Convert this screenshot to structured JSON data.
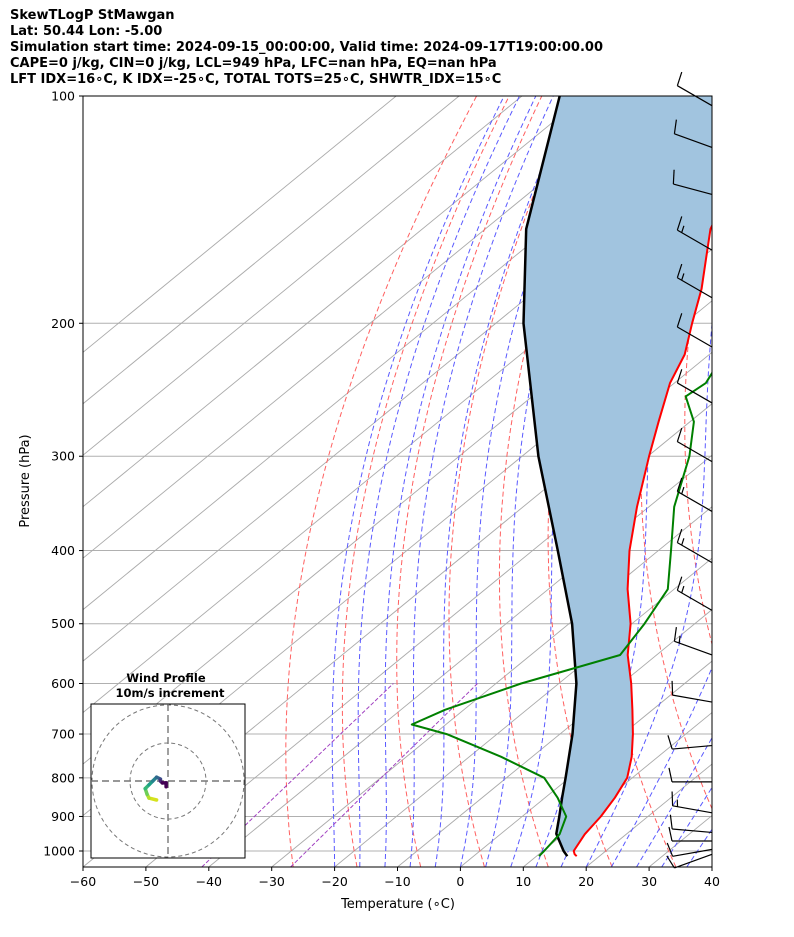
{
  "header": {
    "title_line": "SkewTLogP StMawgan",
    "location_line": "Lat: 50.44   Lon: -5.00",
    "time_line": "Simulation start time: 2024-09-15_00:00:00, Valid time: 2024-09-17T19:00:00.00",
    "params_line": "CAPE=0 j/kg, CIN=0 j/kg, LCL=949 hPa, LFC=nan hPa, EQ=nan hPa",
    "indices_line": "LFT IDX=16∘C, K IDX=-25∘C, TOTAL TOTS=25∘C, SHWTR_IDX=15∘C"
  },
  "chart_data": {
    "type": "skewt",
    "xlabel": "Temperature (∘C)",
    "ylabel": "Pressure (hPa)",
    "xlim": [
      -60,
      40
    ],
    "ylim": [
      1050,
      100
    ],
    "x_ticks": [
      -60,
      -50,
      -40,
      -30,
      -20,
      -10,
      0,
      10,
      20,
      30,
      40
    ],
    "y_ticks": [
      100,
      200,
      300,
      400,
      500,
      600,
      700,
      800,
      900,
      1000
    ],
    "grid": true,
    "colors": {
      "temperature": "#ff0000",
      "dewpoint": "#008000",
      "parcel": "#000000",
      "cape_fill": "#a1c4df",
      "dry_adiabats": "#ff6060",
      "moist_adiabats": "#5a5aff",
      "mixing_ratio": "#a040c0",
      "isotherms": "#aaaaaa"
    },
    "temperature": {
      "p": [
        1016,
        1010,
        1000,
        950,
        900,
        850,
        800,
        750,
        700,
        650,
        600,
        550,
        500,
        450,
        400,
        350,
        300,
        270,
        240,
        220,
        200,
        180,
        160,
        150,
        140,
        130,
        120,
        110,
        100
      ],
      "t": [
        16.4,
        15.7,
        14.9,
        13.4,
        12.5,
        11.1,
        9.2,
        5.8,
        1.6,
        -3.2,
        -8.5,
        -14.6,
        -20.2,
        -27.4,
        -34.6,
        -41.9,
        -49.8,
        -55.0,
        -60.7,
        -63.9,
        -68.8,
        -74.0,
        -80.6,
        -84.2,
        -86.8,
        -84.2,
        -78.2,
        -74.6,
        -73.2
      ]
    },
    "dewpoint": {
      "p": [
        1016,
        1000,
        950,
        900,
        850,
        800,
        750,
        700,
        680,
        650,
        600,
        550,
        500,
        450,
        400,
        350,
        300,
        270,
        250,
        240,
        220,
        200,
        180,
        170,
        160,
        150,
        140,
        130,
        120,
        110,
        100
      ],
      "td": [
        10.4,
        10.2,
        9.4,
        7.0,
        2.0,
        -4.0,
        -15.0,
        -28.0,
        -35.4,
        -33.0,
        -26.0,
        -15.8,
        -18.0,
        -21.0,
        -28.0,
        -36.0,
        -43.4,
        -49.4,
        -55.6,
        -55.0,
        -57.7,
        -62.5,
        -72.0,
        -71.0,
        -71.0,
        -72.4,
        -74.7,
        -78.2,
        -84.0,
        -85.6,
        -83.0
      ]
    },
    "parcel": {
      "p": [
        1016,
        1000,
        949,
        900,
        850,
        800,
        700,
        600,
        500,
        400,
        300,
        200,
        150,
        100
      ],
      "t": [
        14.9,
        13.3,
        8.8,
        5.9,
        2.7,
        -0.6,
        -8.0,
        -17.2,
        -29.5,
        -46.0,
        -67.4,
        -95.6,
        -113.5,
        -134.0
      ]
    },
    "wind_barbs": [
      {
        "p": 1010,
        "speed_kt": 10,
        "dir_deg": 250
      },
      {
        "p": 995,
        "speed_kt": 10,
        "dir_deg": 260
      },
      {
        "p": 970,
        "speed_kt": 10,
        "dir_deg": 270
      },
      {
        "p": 945,
        "speed_kt": 10,
        "dir_deg": 275
      },
      {
        "p": 890,
        "speed_kt": 15,
        "dir_deg": 280
      },
      {
        "p": 810,
        "speed_kt": 10,
        "dir_deg": 270
      },
      {
        "p": 725,
        "speed_kt": 10,
        "dir_deg": 265
      },
      {
        "p": 635,
        "speed_kt": 10,
        "dir_deg": 280
      },
      {
        "p": 550,
        "speed_kt": 15,
        "dir_deg": 290
      },
      {
        "p": 480,
        "speed_kt": 15,
        "dir_deg": 300
      },
      {
        "p": 415,
        "speed_kt": 15,
        "dir_deg": 300
      },
      {
        "p": 355,
        "speed_kt": 15,
        "dir_deg": 300
      },
      {
        "p": 305,
        "speed_kt": 10,
        "dir_deg": 300
      },
      {
        "p": 255,
        "speed_kt": 10,
        "dir_deg": 300
      },
      {
        "p": 215,
        "speed_kt": 10,
        "dir_deg": 300
      },
      {
        "p": 185,
        "speed_kt": 15,
        "dir_deg": 300
      },
      {
        "p": 160,
        "speed_kt": 15,
        "dir_deg": 300
      },
      {
        "p": 135,
        "speed_kt": 10,
        "dir_deg": 285
      },
      {
        "p": 117,
        "speed_kt": 10,
        "dir_deg": 290
      },
      {
        "p": 103,
        "speed_kt": 10,
        "dir_deg": 300
      }
    ],
    "wind_profile": {
      "title": "Wind Profile",
      "subtitle": "10m/s increment",
      "hodograph": [
        [
          -3,
          -5
        ],
        [
          -5,
          -4.5
        ],
        [
          -5.5,
          -3.5
        ],
        [
          -6,
          -2
        ],
        [
          -5,
          -1
        ],
        [
          -4,
          0
        ],
        [
          -3,
          1
        ],
        [
          -2,
          0.5
        ],
        [
          -2,
          0
        ],
        [
          -1.5,
          -0.5
        ],
        [
          -0.5,
          -0.5
        ],
        [
          -0.5,
          -1.5
        ]
      ]
    }
  }
}
